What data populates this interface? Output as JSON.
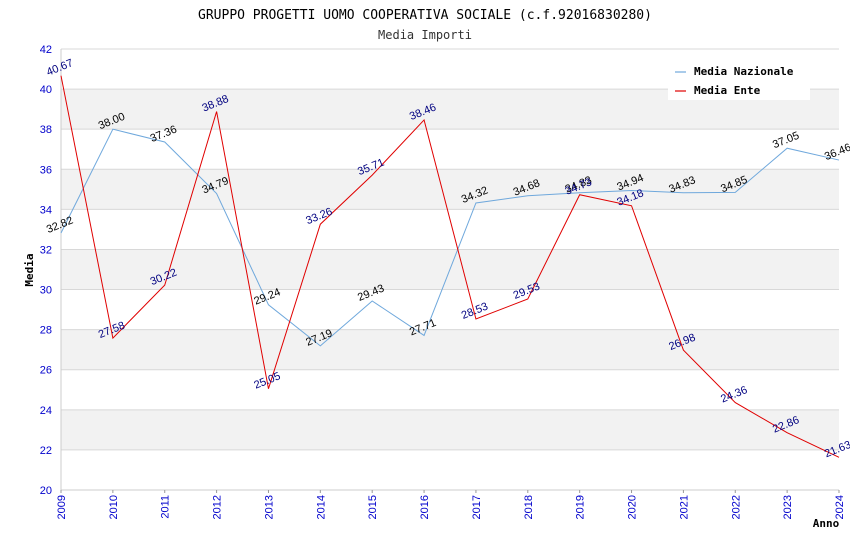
{
  "chart_data": {
    "type": "line",
    "title": "GRUPPO PROGETTI UOMO COOPERATIVA SOCIALE (c.f.92016830280)",
    "subtitle": "Media Importi",
    "xlabel": "Anno",
    "ylabel": "Media",
    "ylim": [
      20,
      42
    ],
    "ytick_step": 2,
    "x": [
      2009,
      2010,
      2011,
      2012,
      2013,
      2014,
      2015,
      2016,
      2017,
      2018,
      2019,
      2020,
      2021,
      2022,
      2023,
      2024
    ],
    "series": [
      {
        "name": "Media Nazionale",
        "color": "#6fa8dc",
        "label_color": "#000000",
        "values": [
          32.82,
          38.0,
          37.36,
          34.79,
          29.24,
          27.19,
          29.43,
          27.71,
          34.32,
          34.68,
          34.83,
          34.94,
          34.83,
          34.85,
          37.05,
          36.46
        ],
        "labels": [
          "32.82",
          "38.00",
          "37.36",
          "34.79",
          "29.24",
          "27.19",
          "29.43",
          "27.71",
          "34.32",
          "34.68",
          "34.83",
          "34.94",
          "34.83",
          "34.85",
          "37.05",
          "36.46"
        ]
      },
      {
        "name": "Media Ente",
        "color": "#e00000",
        "label_color": "#000080",
        "values": [
          40.67,
          27.58,
          30.22,
          38.88,
          25.05,
          33.26,
          35.71,
          38.46,
          28.53,
          29.53,
          34.73,
          34.18,
          26.98,
          24.36,
          22.86,
          21.63
        ],
        "labels": [
          "40.67",
          "27.58",
          "30.22",
          "38.88",
          "25.05",
          "33.26",
          "35.71",
          "38.46",
          "28.53",
          "29.53",
          "34.73",
          "34.18",
          "26.98",
          "24.36",
          "22.86",
          "21.63"
        ]
      }
    ],
    "grid": true,
    "legend_position": "top-right",
    "tick_color": "#0000cc",
    "band_color": "#f2f2f2",
    "grid_color": "#d8d8d8"
  }
}
